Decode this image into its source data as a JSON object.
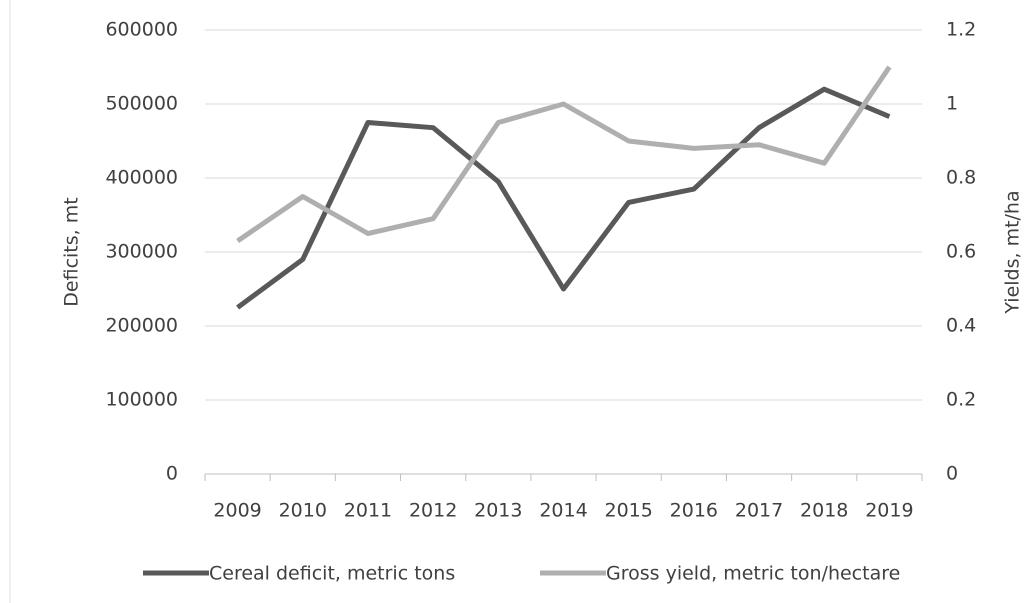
{
  "chart_data": {
    "type": "line",
    "categories": [
      "2009",
      "2010",
      "2011",
      "2012",
      "2013",
      "2014",
      "2015",
      "2016",
      "2017",
      "2018",
      "2019"
    ],
    "series": [
      {
        "name": "Cereal deficit, metric tons",
        "color": "#595959",
        "values": [
          225000,
          290000,
          475000,
          468000,
          395000,
          250000,
          367000,
          385000,
          468000,
          520000,
          483000
        ]
      },
      {
        "name": "Gross yield, metric ton/hectare",
        "color": "#afafaf",
        "axis": "y2",
        "values": [
          0.63,
          0.75,
          0.65,
          0.69,
          0.95,
          1.0,
          0.9,
          0.88,
          0.89,
          0.84,
          1.1
        ]
      }
    ],
    "ylabel": "Deficits, mt",
    "y2label": "Yields, mt/ha",
    "ylim": [
      0,
      600000
    ],
    "yticks": [
      0,
      100000,
      200000,
      300000,
      400000,
      500000,
      600000
    ],
    "y2lim": [
      0,
      1.2
    ],
    "y2ticks": [
      0,
      0.2,
      0.4,
      0.6,
      0.8,
      1,
      1.2
    ],
    "grid": true,
    "legend": "bottom"
  }
}
